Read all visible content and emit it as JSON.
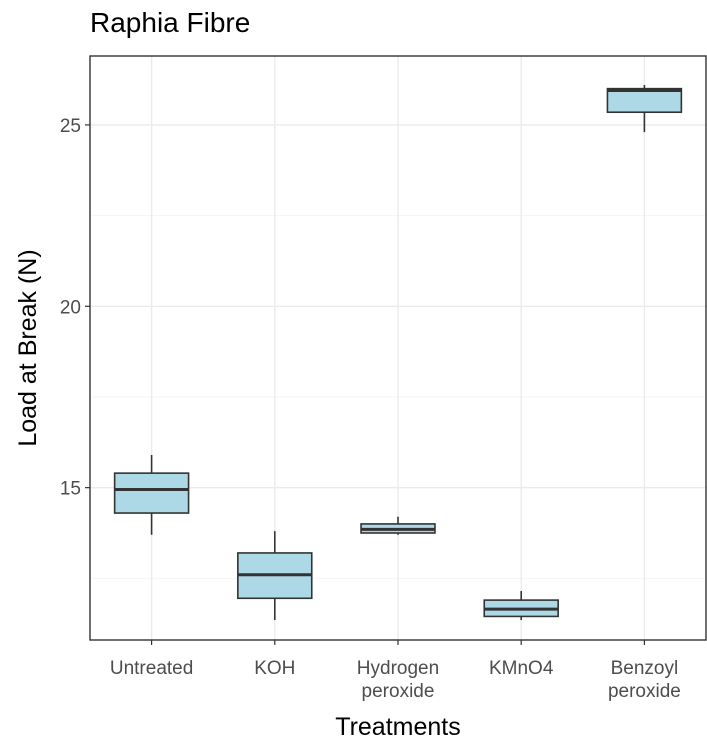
{
  "chart_data": {
    "type": "box",
    "title": "Raphia Fibre",
    "xlabel": "Treatments",
    "ylabel": "Load at Break (N)",
    "ylim": [
      10.8,
      26.9
    ],
    "yticks": [
      15,
      20,
      25
    ],
    "grid": true,
    "colors": {
      "box_fill": "#add8e6",
      "box_stroke": "#333333",
      "grid_major": "#ebebeb",
      "grid_minor": "#f5f5f5",
      "panel_border": "#333333",
      "tick_label": "#4d4d4d",
      "text": "#000000"
    },
    "categories": [
      {
        "label": [
          "Untreated"
        ],
        "min": 13.7,
        "q1": 14.3,
        "median": 14.95,
        "q3": 15.4,
        "max": 15.9
      },
      {
        "label": [
          "KOH"
        ],
        "min": 11.35,
        "q1": 11.95,
        "median": 12.6,
        "q3": 13.2,
        "max": 13.8
      },
      {
        "label": [
          "Hydrogen",
          "peroxide"
        ],
        "min": 13.7,
        "q1": 13.75,
        "median": 13.85,
        "q3": 14.0,
        "max": 14.2
      },
      {
        "label": [
          "KMnO4"
        ],
        "min": 11.35,
        "q1": 11.45,
        "median": 11.65,
        "q3": 11.9,
        "max": 12.15
      },
      {
        "label": [
          "Benzoyl",
          "peroxide"
        ],
        "min": 24.8,
        "q1": 25.35,
        "median": 25.95,
        "q3": 26.0,
        "max": 26.1
      }
    ]
  }
}
